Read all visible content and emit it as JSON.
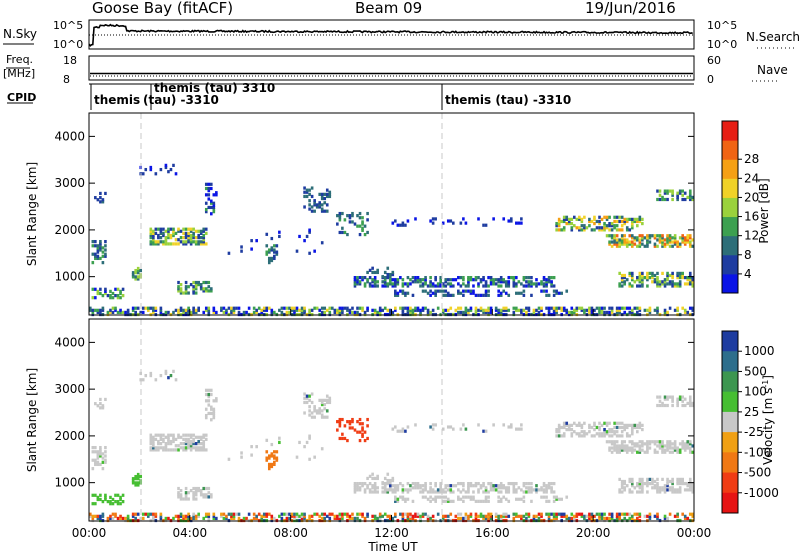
{
  "header": {
    "station": "Goose Bay (fitACF)",
    "beam": "Beam 09",
    "date": "19/Jun/2016"
  },
  "param_panels": {
    "nsky_label": "N.Sky",
    "nsky_ticks": [
      "10^5",
      "10^0"
    ],
    "nsearch_label": "N.Search",
    "nsearch_ticks": [
      "10^5",
      "10^0"
    ],
    "freq_label": "Freq.",
    "freq_unit": "[MHz]",
    "freq_ticks": [
      "18",
      "8"
    ],
    "nave_label": "Nave",
    "nave_ticks": [
      "60",
      "0"
    ],
    "cpid_label": "CPID",
    "cpid_entries": [
      {
        "text": "themis",
        "line2": ""
      },
      {
        "text": "themis (tau) 3310",
        "line2": "(tau) -3310"
      },
      {
        "text": "themis (tau) -3310",
        "line2": ""
      }
    ]
  },
  "chart_data": [
    {
      "type": "heatmap",
      "name": "power",
      "ylabel": "Slant Range [km]",
      "yticks": [
        1000,
        2000,
        3000,
        4000
      ],
      "ylim": [
        180,
        4500
      ],
      "xlim": [
        0,
        24
      ],
      "colorbar": {
        "label": "Power [dB]",
        "tick_labels": [
          "4",
          "8",
          "12",
          "16",
          "20",
          "24",
          "28"
        ],
        "colors": [
          "#0a14e6",
          "#1e3ca0",
          "#2d6e78",
          "#3ca050",
          "#9ad23c",
          "#f0d228",
          "#f5a014",
          "#f06414",
          "#e61e14"
        ]
      }
    },
    {
      "type": "heatmap",
      "name": "velocity",
      "ylabel": "Slant Range [km]",
      "yticks": [
        1000,
        2000,
        3000,
        4000
      ],
      "ylim": [
        180,
        4500
      ],
      "xlim": [
        0,
        24
      ],
      "xticks": [
        "00:00",
        "04:00",
        "08:00",
        "12:00",
        "16:00",
        "20:00",
        "00:00"
      ],
      "xlabel": "Time UT",
      "colorbar": {
        "label_main": "Velocity",
        "label_unit": "[m s",
        "label_exp": "-1",
        "label_close": "]",
        "tick_labels": [
          "1000",
          "500",
          "100",
          "25",
          "-25",
          "-100",
          "-500",
          "-1000"
        ],
        "colors": [
          "#1e3ca0",
          "#2d6e8c",
          "#3c9650",
          "#46be32",
          "#c8c8c8",
          "#f0a014",
          "#f07814",
          "#f03c14",
          "#e61414"
        ]
      }
    }
  ]
}
